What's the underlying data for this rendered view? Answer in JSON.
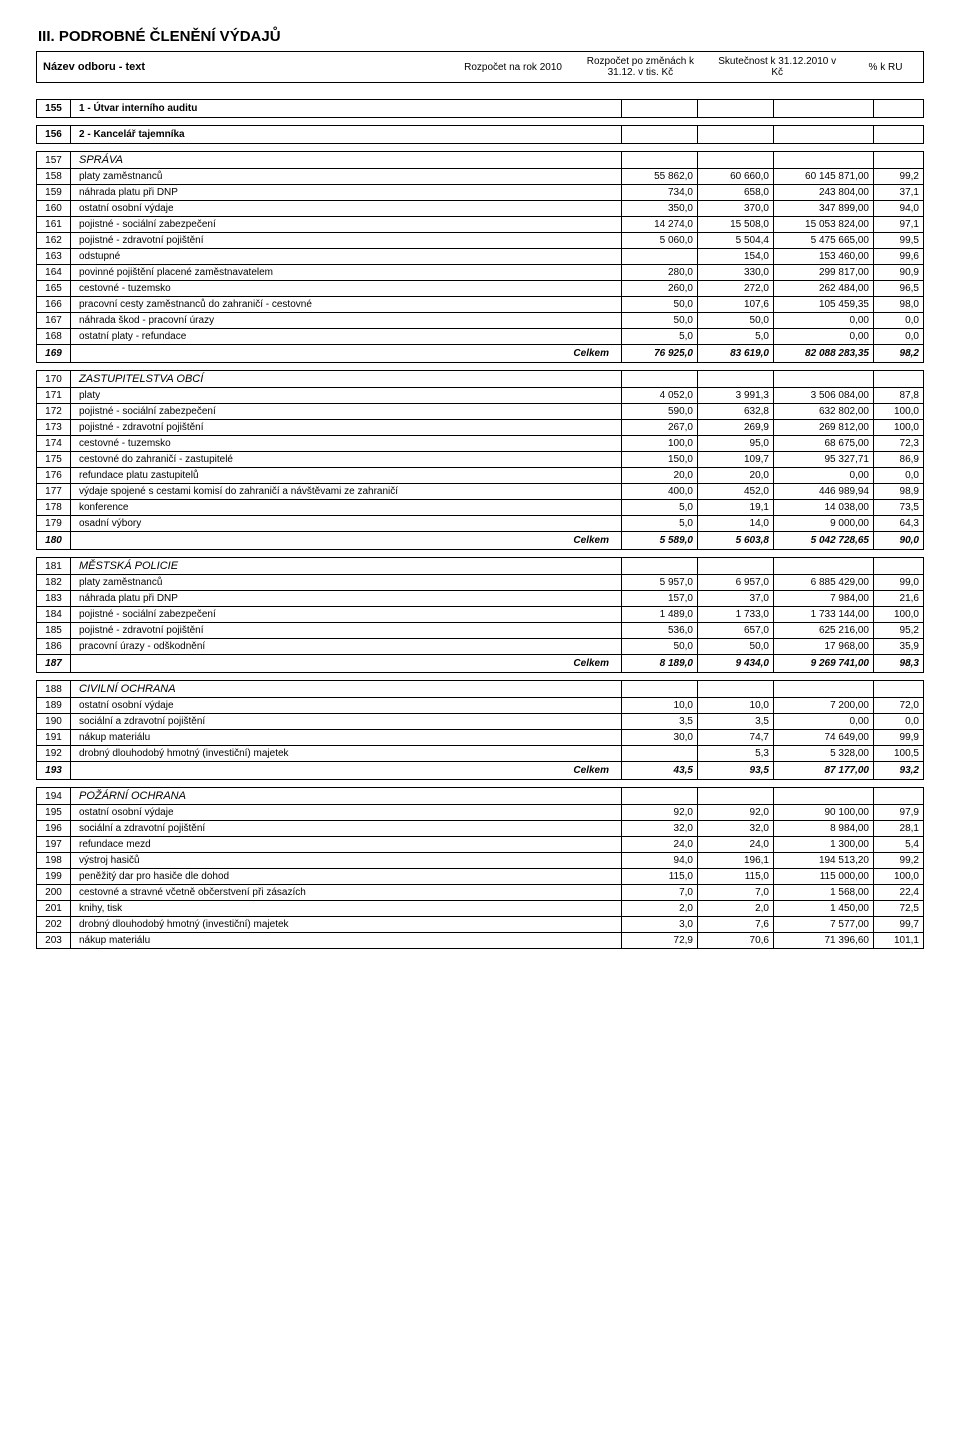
{
  "title": "III. PODROBNÉ ČLENĚNÍ VÝDAJŮ",
  "headers": {
    "name": "Název odboru - text",
    "c1": "Rozpočet na rok 2010",
    "c2": "Rozpočet po změnách k 31.12. v tis. Kč",
    "c3": "Skutečnost k 31.12.2010 v Kč",
    "c4": "% k RU"
  },
  "sections": [
    {
      "rn": "155",
      "label": "1 - Útvar interního auditu",
      "style": "boxed"
    },
    {
      "rn": "156",
      "label": "2 - Kancelář tajemníka",
      "style": "boxed"
    },
    {
      "rn": "157",
      "label": "SPRÁVA",
      "style": "sub",
      "rows": [
        {
          "rn": "158",
          "txt": "platy zaměstnanců",
          "v": [
            "55 862,0",
            "60 660,0",
            "60 145 871,00",
            "99,2"
          ]
        },
        {
          "rn": "159",
          "txt": "náhrada platu při DNP",
          "v": [
            "734,0",
            "658,0",
            "243 804,00",
            "37,1"
          ]
        },
        {
          "rn": "160",
          "txt": "ostatní osobní výdaje",
          "v": [
            "350,0",
            "370,0",
            "347 899,00",
            "94,0"
          ]
        },
        {
          "rn": "161",
          "txt": "pojistné - sociální zabezpečení",
          "v": [
            "14 274,0",
            "15 508,0",
            "15 053 824,00",
            "97,1"
          ]
        },
        {
          "rn": "162",
          "txt": "pojistné - zdravotní pojištění",
          "v": [
            "5 060,0",
            "5 504,4",
            "5 475 665,00",
            "99,5"
          ]
        },
        {
          "rn": "163",
          "txt": "odstupné",
          "v": [
            "",
            "154,0",
            "153 460,00",
            "99,6"
          ]
        },
        {
          "rn": "164",
          "txt": "povinné pojištění placené zaměstnavatelem",
          "v": [
            "280,0",
            "330,0",
            "299 817,00",
            "90,9"
          ]
        },
        {
          "rn": "165",
          "txt": "cestovné - tuzemsko",
          "v": [
            "260,0",
            "272,0",
            "262 484,00",
            "96,5"
          ]
        },
        {
          "rn": "166",
          "txt": "pracovní cesty zaměstnanců do zahraničí - cestovné",
          "v": [
            "50,0",
            "107,6",
            "105 459,35",
            "98,0"
          ]
        },
        {
          "rn": "167",
          "txt": "náhrada škod - pracovní úrazy",
          "v": [
            "50,0",
            "50,0",
            "0,00",
            "0,0"
          ]
        },
        {
          "rn": "168",
          "txt": "ostatní platy - refundace",
          "v": [
            "5,0",
            "5,0",
            "0,00",
            "0,0"
          ]
        }
      ],
      "total": {
        "rn": "169",
        "label": "Celkem",
        "v": [
          "76 925,0",
          "83 619,0",
          "82 088 283,35",
          "98,2"
        ]
      }
    },
    {
      "rn": "170",
      "label": "ZASTUPITELSTVA OBCÍ",
      "style": "sub",
      "rows": [
        {
          "rn": "171",
          "txt": "platy",
          "v": [
            "4 052,0",
            "3 991,3",
            "3 506 084,00",
            "87,8"
          ]
        },
        {
          "rn": "172",
          "txt": "pojistné - sociální zabezpečení",
          "v": [
            "590,0",
            "632,8",
            "632 802,00",
            "100,0"
          ]
        },
        {
          "rn": "173",
          "txt": "pojistné - zdravotní pojištění",
          "v": [
            "267,0",
            "269,9",
            "269 812,00",
            "100,0"
          ]
        },
        {
          "rn": "174",
          "txt": "cestovné - tuzemsko",
          "v": [
            "100,0",
            "95,0",
            "68 675,00",
            "72,3"
          ]
        },
        {
          "rn": "175",
          "txt": "cestovné do zahraničí - zastupitelé",
          "v": [
            "150,0",
            "109,7",
            "95 327,71",
            "86,9"
          ]
        },
        {
          "rn": "176",
          "txt": "refundace platu zastupitelů",
          "v": [
            "20,0",
            "20,0",
            "0,00",
            "0,0"
          ]
        },
        {
          "rn": "177",
          "txt": "výdaje spojené s cestami komisí do zahraničí a návštěvami ze zahraničí",
          "v": [
            "400,0",
            "452,0",
            "446 989,94",
            "98,9"
          ]
        },
        {
          "rn": "178",
          "txt": "konference",
          "v": [
            "5,0",
            "19,1",
            "14 038,00",
            "73,5"
          ]
        },
        {
          "rn": "179",
          "txt": "osadní výbory",
          "v": [
            "5,0",
            "14,0",
            "9 000,00",
            "64,3"
          ]
        }
      ],
      "total": {
        "rn": "180",
        "label": "Celkem",
        "v": [
          "5 589,0",
          "5 603,8",
          "5 042 728,65",
          "90,0"
        ]
      }
    },
    {
      "rn": "181",
      "label": "MĚSTSKÁ POLICIE",
      "style": "sub",
      "rows": [
        {
          "rn": "182",
          "txt": "platy zaměstnanců",
          "v": [
            "5 957,0",
            "6 957,0",
            "6 885 429,00",
            "99,0"
          ]
        },
        {
          "rn": "183",
          "txt": "náhrada platu při DNP",
          "v": [
            "157,0",
            "37,0",
            "7 984,00",
            "21,6"
          ]
        },
        {
          "rn": "184",
          "txt": "pojistné - sociální zabezpečení",
          "v": [
            "1 489,0",
            "1 733,0",
            "1 733 144,00",
            "100,0"
          ]
        },
        {
          "rn": "185",
          "txt": "pojistné - zdravotní pojištění",
          "v": [
            "536,0",
            "657,0",
            "625 216,00",
            "95,2"
          ]
        },
        {
          "rn": "186",
          "txt": "pracovní úrazy - odškodnění",
          "v": [
            "50,0",
            "50,0",
            "17 968,00",
            "35,9"
          ]
        }
      ],
      "total": {
        "rn": "187",
        "label": "Celkem",
        "v": [
          "8 189,0",
          "9 434,0",
          "9 269 741,00",
          "98,3"
        ]
      }
    },
    {
      "rn": "188",
      "label": "CIVILNÍ OCHRANA",
      "style": "sub",
      "rows": [
        {
          "rn": "189",
          "txt": "ostatní osobní výdaje",
          "v": [
            "10,0",
            "10,0",
            "7 200,00",
            "72,0"
          ]
        },
        {
          "rn": "190",
          "txt": "sociální a zdravotní pojištění",
          "v": [
            "3,5",
            "3,5",
            "0,00",
            "0,0"
          ]
        },
        {
          "rn": "191",
          "txt": "nákup materiálu",
          "v": [
            "30,0",
            "74,7",
            "74 649,00",
            "99,9"
          ]
        },
        {
          "rn": "192",
          "txt": "drobný dlouhodobý hmotný (investiční) majetek",
          "v": [
            "",
            "5,3",
            "5 328,00",
            "100,5"
          ]
        }
      ],
      "total": {
        "rn": "193",
        "label": "Celkem",
        "v": [
          "43,5",
          "93,5",
          "87 177,00",
          "93,2"
        ]
      }
    },
    {
      "rn": "194",
      "label": "POŽÁRNÍ OCHRANA",
      "style": "sub",
      "rows": [
        {
          "rn": "195",
          "txt": "ostatní osobní výdaje",
          "v": [
            "92,0",
            "92,0",
            "90 100,00",
            "97,9"
          ]
        },
        {
          "rn": "196",
          "txt": "sociální a zdravotní pojištění",
          "v": [
            "32,0",
            "32,0",
            "8 984,00",
            "28,1"
          ]
        },
        {
          "rn": "197",
          "txt": "refundace mezd",
          "v": [
            "24,0",
            "24,0",
            "1 300,00",
            "5,4"
          ]
        },
        {
          "rn": "198",
          "txt": "výstroj hasičů",
          "v": [
            "94,0",
            "196,1",
            "194 513,20",
            "99,2"
          ]
        },
        {
          "rn": "199",
          "txt": "peněžitý dar pro hasiče dle dohod",
          "v": [
            "115,0",
            "115,0",
            "115 000,00",
            "100,0"
          ]
        },
        {
          "rn": "200",
          "txt": "cestovné a stravné včetně občerstvení při zásazích",
          "v": [
            "7,0",
            "7,0",
            "1 568,00",
            "22,4"
          ]
        },
        {
          "rn": "201",
          "txt": "knihy, tisk",
          "v": [
            "2,0",
            "2,0",
            "1 450,00",
            "72,5"
          ]
        },
        {
          "rn": "202",
          "txt": "drobný dlouhodobý hmotný (investiční) majetek",
          "v": [
            "3,0",
            "7,6",
            "7 577,00",
            "99,7"
          ]
        },
        {
          "rn": "203",
          "txt": "nákup materiálu",
          "v": [
            "72,9",
            "70,6",
            "71 396,60",
            "101,1"
          ]
        }
      ]
    }
  ]
}
